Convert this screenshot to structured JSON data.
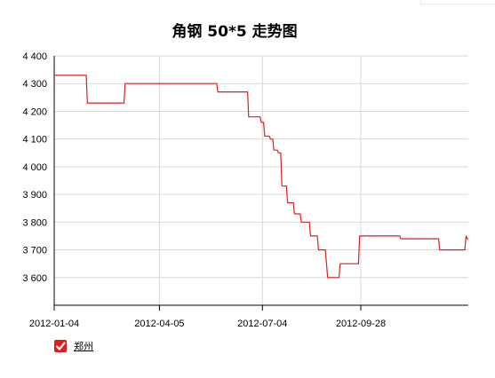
{
  "chart_data": {
    "type": "line",
    "title": "角钢 50*5 走势图",
    "xlabel": "",
    "ylabel": "",
    "x_range": [
      "2012-01-04",
      "2012-12-31"
    ],
    "ylim": [
      3500,
      4400
    ],
    "yticks": [
      3600,
      3700,
      3800,
      3900,
      4000,
      4100,
      4200,
      4300,
      4400
    ],
    "ytick_labels": [
      "3 600",
      "3 700",
      "3 800",
      "3 900",
      "4 000",
      "4 100",
      "4 200",
      "4 300",
      "4 400"
    ],
    "xticks": [
      "2012-01-04",
      "2012-04-05",
      "2012-07-04",
      "2012-09-28"
    ],
    "grid": true,
    "legend_position": "bottom-left",
    "series": [
      {
        "name": "郑州",
        "color": "#e31b1b",
        "points": [
          [
            "2012-01-04",
            4330
          ],
          [
            "2012-02-01",
            4330
          ],
          [
            "2012-02-02",
            4230
          ],
          [
            "2012-03-05",
            4230
          ],
          [
            "2012-03-06",
            4300
          ],
          [
            "2012-05-25",
            4300
          ],
          [
            "2012-05-26",
            4270
          ],
          [
            "2012-06-21",
            4270
          ],
          [
            "2012-06-22",
            4180
          ],
          [
            "2012-07-02",
            4180
          ],
          [
            "2012-07-03",
            4160
          ],
          [
            "2012-07-05",
            4160
          ],
          [
            "2012-07-06",
            4110
          ],
          [
            "2012-07-10",
            4110
          ],
          [
            "2012-07-11",
            4100
          ],
          [
            "2012-07-13",
            4100
          ],
          [
            "2012-07-14",
            4060
          ],
          [
            "2012-07-17",
            4060
          ],
          [
            "2012-07-18",
            4050
          ],
          [
            "2012-07-20",
            4050
          ],
          [
            "2012-07-21",
            3930
          ],
          [
            "2012-07-25",
            3930
          ],
          [
            "2012-07-26",
            3870
          ],
          [
            "2012-07-31",
            3870
          ],
          [
            "2012-08-01",
            3830
          ],
          [
            "2012-08-06",
            3830
          ],
          [
            "2012-08-07",
            3800
          ],
          [
            "2012-08-14",
            3800
          ],
          [
            "2012-08-15",
            3750
          ],
          [
            "2012-08-21",
            3750
          ],
          [
            "2012-08-22",
            3700
          ],
          [
            "2012-08-28",
            3700
          ],
          [
            "2012-08-30",
            3600
          ],
          [
            "2012-09-09",
            3600
          ],
          [
            "2012-09-10",
            3650
          ],
          [
            "2012-09-26",
            3650
          ],
          [
            "2012-09-27",
            3750
          ],
          [
            "2012-11-01",
            3750
          ],
          [
            "2012-11-02",
            3740
          ],
          [
            "2012-12-05",
            3740
          ],
          [
            "2012-12-06",
            3700
          ],
          [
            "2012-12-28",
            3700
          ],
          [
            "2012-12-29",
            3750
          ],
          [
            "2012-12-30",
            3740
          ],
          [
            "2012-12-31",
            3740
          ]
        ]
      }
    ]
  }
}
